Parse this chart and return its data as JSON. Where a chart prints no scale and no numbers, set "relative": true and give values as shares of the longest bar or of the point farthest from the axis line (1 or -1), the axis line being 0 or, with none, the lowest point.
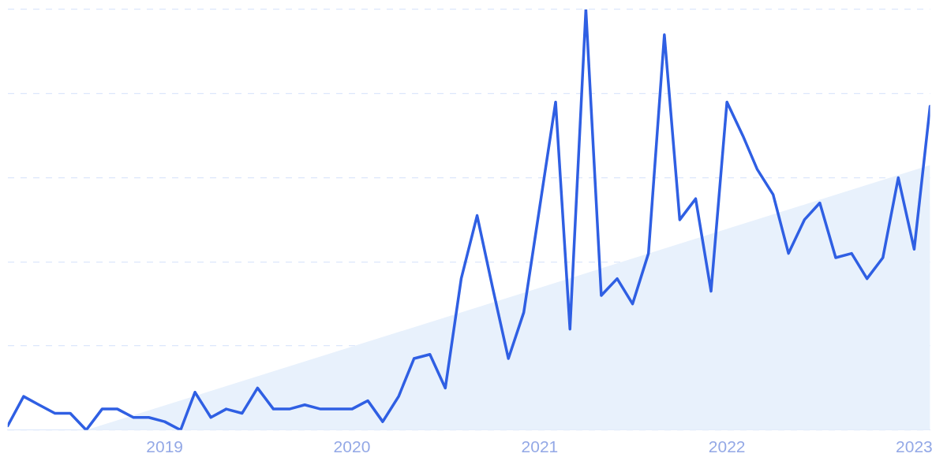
{
  "chart_data": {
    "type": "line",
    "relative": true,
    "grid": "y",
    "marker": "none",
    "line_style": "solid",
    "x": [
      "2018-03",
      "2018-04",
      "2018-05",
      "2018-06",
      "2018-07",
      "2018-08",
      "2018-09",
      "2018-10",
      "2018-11",
      "2018-12",
      "2019-01",
      "2019-02",
      "2019-03",
      "2019-04",
      "2019-05",
      "2019-06",
      "2019-07",
      "2019-08",
      "2019-09",
      "2019-10",
      "2019-11",
      "2019-12",
      "2020-01",
      "2020-02",
      "2020-03",
      "2020-04",
      "2020-05",
      "2020-06",
      "2020-07",
      "2020-08",
      "2020-09",
      "2020-10",
      "2020-11",
      "2020-12",
      "2021-01",
      "2021-02",
      "2021-03",
      "2021-04",
      "2021-05",
      "2021-06",
      "2021-07",
      "2021-08",
      "2021-09",
      "2021-10",
      "2021-11",
      "2021-12",
      "2022-01",
      "2022-02",
      "2022-03",
      "2022-04",
      "2022-05",
      "2022-06",
      "2022-07",
      "2022-08",
      "2022-09",
      "2022-10",
      "2022-11",
      "2022-12",
      "2023-01",
      "2023-02"
    ],
    "xlim": [
      "2018-03",
      "2023-02"
    ],
    "xticks": [
      {
        "value": "2019",
        "label": "2019"
      },
      {
        "value": "2020",
        "label": "2020"
      },
      {
        "value": "2021",
        "label": "2021"
      },
      {
        "value": "2022",
        "label": "2022"
      },
      {
        "value": "2023",
        "label": "2023"
      }
    ],
    "series": [
      {
        "type": "area",
        "color": "#e8f1fc",
        "x": [
          "2018-08",
          "2023-02"
        ],
        "values": [
          0,
          0.63
        ]
      },
      {
        "color": "#2f5fe3",
        "values": [
          0.01,
          0.08,
          0.06,
          0.04,
          0.04,
          0,
          0.05,
          0.05,
          0.03,
          0.03,
          0.02,
          0,
          0.09,
          0.03,
          0.05,
          0.04,
          0.1,
          0.05,
          0.05,
          0.06,
          0.05,
          0.05,
          0.05,
          0.07,
          0.02,
          0.08,
          0.17,
          0.18,
          0.1,
          0.36,
          0.51,
          0.34,
          0.17,
          0.28,
          0.53,
          0.78,
          0.24,
          1,
          0.32,
          0.36,
          0.3,
          0.42,
          0.94,
          0.5,
          0.55,
          0.33,
          0.78,
          0.7,
          0.62,
          0.56,
          0.42,
          0.5,
          0.54,
          0.41,
          0.42,
          0.36,
          0.41,
          0.6,
          0.43,
          0.77
        ]
      }
    ]
  }
}
